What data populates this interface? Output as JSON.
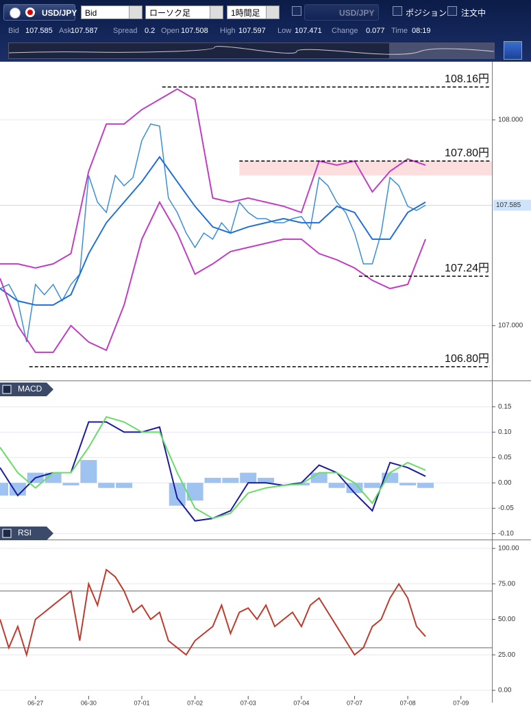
{
  "toolbar": {
    "symbol": "USD/JPY",
    "price_type": "Bid",
    "chart_type": "ローソク足",
    "timeframe": "1時間足",
    "compare_symbol": "USD/JPY",
    "position": "ポジション",
    "orders": "注文中"
  },
  "quote": [
    {
      "label": "Bid",
      "value": "107.585"
    },
    {
      "label": "Ask",
      "value": "107.587"
    },
    {
      "label": "Spread",
      "value": "0.2"
    },
    {
      "label": "Open",
      "value": "107.508"
    },
    {
      "label": "High",
      "value": "107.597"
    },
    {
      "label": "Low",
      "value": "107.471"
    },
    {
      "label": "Change",
      "value": "0.077"
    },
    {
      "label": "Time",
      "value": "08:19"
    }
  ],
  "chart_data": [
    {
      "type": "line",
      "xlim": [
        0,
        55.5
      ],
      "ylim": [
        106.733,
        108.283
      ],
      "yticks": [
        {
          "value": 107,
          "label": "107.000"
        },
        {
          "value": 108,
          "label": "108.000"
        }
      ],
      "current_price": {
        "value": 107.585,
        "label": "107.585"
      },
      "levels": [
        {
          "value": 108.16,
          "label": "108.16円",
          "x_start": 18.3
        },
        {
          "value": 107.8,
          "label": "107.80円",
          "x_start": 27
        },
        {
          "value": 107.24,
          "label": "107.24円",
          "x_start": 40.5
        },
        {
          "value": 106.8,
          "label": "106.80円",
          "x_start": 3.3
        }
      ],
      "zone": {
        "from": 107.73,
        "to": 107.8,
        "x_start": 27,
        "color": "#fddede"
      },
      "series": [
        {
          "color": "#3a8fd6",
          "values": [
            107.18,
            107.2,
            107.12,
            106.92,
            107.2,
            107.15,
            107.2,
            107.12,
            107.2,
            107.25,
            107.73,
            107.6,
            107.55,
            107.73,
            107.68,
            107.72,
            107.9,
            107.98,
            107.97,
            107.62,
            107.55,
            107.45,
            107.38,
            107.45,
            107.42,
            107.5,
            107.45,
            107.6,
            107.55,
            107.52,
            107.52,
            107.5,
            107.5,
            107.52,
            107.53,
            107.47,
            107.72,
            107.68,
            107.6,
            107.55,
            107.45,
            107.3,
            107.3,
            107.45,
            107.72,
            107.68,
            107.58,
            107.56,
            107.585
          ]
        },
        {
          "color": "#1f6fd6",
          "x": [
            0,
            2,
            4,
            6,
            8,
            10,
            12,
            14,
            16,
            18,
            20,
            22,
            24,
            26,
            28,
            30,
            32,
            34,
            36,
            38,
            40,
            42,
            44,
            46,
            48
          ],
          "values": [
            107.18,
            107.12,
            107.1,
            107.1,
            107.15,
            107.35,
            107.5,
            107.6,
            107.7,
            107.82,
            107.7,
            107.58,
            107.48,
            107.45,
            107.48,
            107.5,
            107.52,
            107.5,
            107.5,
            107.58,
            107.55,
            107.42,
            107.42,
            107.55,
            107.6
          ]
        },
        {
          "color": "#c23cc4",
          "x": [
            0,
            2,
            4,
            6,
            8,
            10,
            12,
            14,
            16,
            18,
            20,
            22,
            24,
            26,
            28,
            30,
            32,
            34,
            36,
            38,
            40,
            42,
            44,
            46,
            48
          ],
          "values": [
            107.3,
            107.3,
            107.28,
            107.3,
            107.35,
            107.75,
            107.98,
            107.98,
            108.05,
            108.1,
            108.15,
            108.1,
            107.62,
            107.6,
            107.62,
            107.6,
            107.58,
            107.55,
            107.8,
            107.78,
            107.8,
            107.65,
            107.75,
            107.81,
            107.78
          ]
        },
        {
          "color": "#c23cc4",
          "x": [
            0,
            2,
            4,
            6,
            8,
            10,
            12,
            14,
            16,
            18,
            20,
            22,
            24,
            26,
            28,
            30,
            32,
            34,
            36,
            38,
            40,
            42,
            44,
            46,
            48
          ],
          "values": [
            107.23,
            107.0,
            106.87,
            106.87,
            107.0,
            106.92,
            106.88,
            107.1,
            107.42,
            107.6,
            107.45,
            107.25,
            107.3,
            107.36,
            107.38,
            107.4,
            107.42,
            107.42,
            107.35,
            107.32,
            107.28,
            107.22,
            107.18,
            107.2,
            107.42
          ]
        }
      ]
    },
    {
      "type": "line",
      "title": "MACD",
      "xlim": [
        0,
        55.5
      ],
      "ylim": [
        -0.109,
        0.168
      ],
      "yticks": [
        {
          "value": 0.15,
          "label": "0.15"
        },
        {
          "value": 0.1,
          "label": "0.10"
        },
        {
          "value": 0.05,
          "label": "0.05"
        },
        {
          "value": 0,
          "label": "0.00"
        },
        {
          "value": -0.05,
          "label": "-0.05"
        },
        {
          "value": -0.1,
          "label": "-0.10"
        }
      ],
      "histogram": {
        "color": "#9ec3f0",
        "x": [
          0,
          2,
          4,
          6,
          8,
          10,
          12,
          14,
          16,
          18,
          20,
          22,
          24,
          26,
          28,
          30,
          32,
          34,
          36,
          38,
          40,
          42,
          44,
          46,
          48
        ],
        "values": [
          -0.025,
          -0.025,
          0.02,
          0.02,
          -0.005,
          0.045,
          -0.01,
          -0.01,
          0,
          0,
          -0.045,
          -0.035,
          0.01,
          0.01,
          0.02,
          0.01,
          0,
          -0.005,
          0.02,
          -0.01,
          -0.02,
          -0.01,
          0.02,
          -0.005,
          -0.01
        ]
      },
      "series": [
        {
          "color": "#1a1aa0",
          "x": [
            0,
            2,
            4,
            6,
            8,
            10,
            12,
            14,
            16,
            18,
            20,
            22,
            24,
            26,
            28,
            30,
            32,
            34,
            36,
            38,
            40,
            42,
            44,
            46,
            48
          ],
          "values": [
            0.03,
            -0.025,
            0.01,
            0.02,
            0.02,
            0.12,
            0.12,
            0.1,
            0.1,
            0.11,
            -0.03,
            -0.075,
            -0.07,
            -0.055,
            0,
            0,
            -0.005,
            0,
            0.035,
            0.02,
            -0.02,
            -0.055,
            0.04,
            0.03,
            0.013
          ]
        },
        {
          "color": "#66dd66",
          "x": [
            0,
            2,
            4,
            6,
            8,
            10,
            12,
            14,
            16,
            18,
            20,
            22,
            24,
            26,
            28,
            30,
            32,
            34,
            36,
            38,
            40,
            42,
            44,
            46,
            48
          ],
          "values": [
            0.07,
            0.02,
            -0.01,
            0.02,
            0.02,
            0.07,
            0.13,
            0.12,
            0.1,
            0.1,
            0.02,
            -0.05,
            -0.07,
            -0.06,
            -0.02,
            -0.01,
            -0.005,
            -0.002,
            0.02,
            0.02,
            0,
            -0.04,
            0.02,
            0.04,
            0.025
          ]
        }
      ]
    },
    {
      "type": "line",
      "title": "RSI",
      "xlim": [
        0,
        55.5
      ],
      "ylim": [
        -3.9,
        104.8
      ],
      "yticks": [
        {
          "value": 100,
          "label": "100.00"
        },
        {
          "value": 75,
          "label": "75.00"
        },
        {
          "value": 50,
          "label": "50.00"
        },
        {
          "value": 25,
          "label": "25.00"
        },
        {
          "value": 0,
          "label": "0.00"
        }
      ],
      "ref_lines": [
        70,
        30
      ],
      "xticks": [
        {
          "value": 4,
          "label": "06-27"
        },
        {
          "value": 10,
          "label": "06-30"
        },
        {
          "value": 16,
          "label": "07-01"
        },
        {
          "value": 22,
          "label": "07-02"
        },
        {
          "value": 28,
          "label": "07-03"
        },
        {
          "value": 34,
          "label": "07-04"
        },
        {
          "value": 40,
          "label": "07-07"
        },
        {
          "value": 46,
          "label": "07-08"
        },
        {
          "value": 52,
          "label": "07-09"
        }
      ],
      "series": [
        {
          "color": "#c0392b",
          "values": [
            50,
            30,
            45,
            25,
            50,
            55,
            60,
            65,
            70,
            35,
            75,
            60,
            85,
            80,
            70,
            55,
            60,
            50,
            55,
            35,
            30,
            25,
            35,
            40,
            45,
            60,
            40,
            55,
            58,
            50,
            60,
            45,
            50,
            55,
            45,
            60,
            65,
            55,
            45,
            35,
            25,
            30,
            45,
            50,
            65,
            75,
            65,
            45,
            38
          ]
        }
      ]
    }
  ]
}
